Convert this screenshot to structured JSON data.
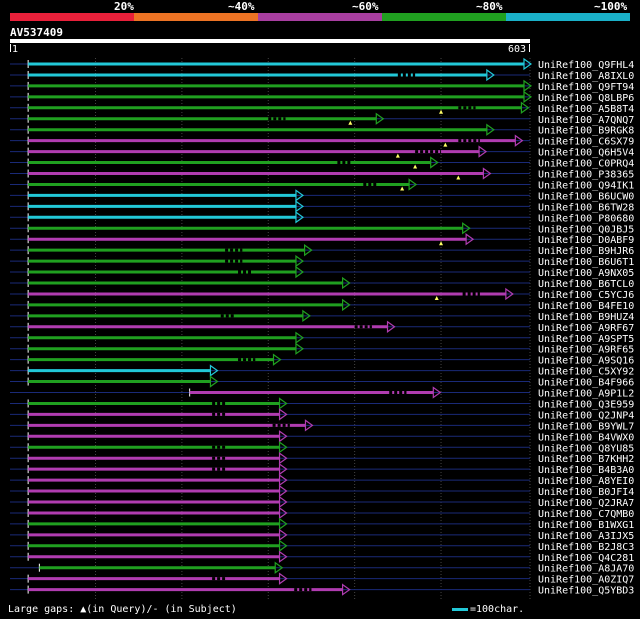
{
  "identity_legend": [
    {
      "label": "20%",
      "color": "#e8203a"
    },
    {
      "label": "~40%",
      "color": "#ec7324"
    },
    {
      "label": "~60%",
      "color": "#a83ea0"
    },
    {
      "label": "~80%",
      "color": "#20a020"
    },
    {
      "label": "~100%",
      "color": "#1ab0c8"
    }
  ],
  "query": {
    "id": "AV537409",
    "start_label": "1",
    "end_label": "603",
    "length": 603
  },
  "colors": {
    "background": "#000000",
    "cyan": "#22c8d8",
    "green": "#20a020",
    "magenta": "#b03cb0",
    "row_line": "#1a2a78",
    "grid": "#444444"
  },
  "hits": [
    {
      "label": "UniRef100_Q9FHL4",
      "start": 22,
      "end": 603,
      "color": "cyan",
      "gaps": []
    },
    {
      "label": "UniRef100_A8IXL0",
      "start": 22,
      "end": 560,
      "color": "cyan",
      "gaps": [
        [
          450,
          470
        ]
      ]
    },
    {
      "label": "UniRef100_Q9FT94",
      "start": 22,
      "end": 603,
      "color": "green",
      "gaps": []
    },
    {
      "label": "UniRef100_Q8LBP6",
      "start": 22,
      "end": 603,
      "color": "green",
      "gaps": []
    },
    {
      "label": "UniRef100_A5B8T4",
      "start": 22,
      "end": 600,
      "color": "green",
      "gaps": [
        [
          520,
          540
        ]
      ],
      "marks": [
        500
      ]
    },
    {
      "label": "UniRef100_A7QNQ7",
      "start": 22,
      "end": 432,
      "color": "green",
      "gaps": [
        [
          300,
          320
        ]
      ],
      "marks": [
        395
      ]
    },
    {
      "label": "UniRef100_B9RGK8",
      "start": 22,
      "end": 560,
      "color": "green",
      "gaps": []
    },
    {
      "label": "UniRef100_C6SX79",
      "start": 22,
      "end": 593,
      "color": "magenta",
      "gaps": [
        [
          520,
          545
        ]
      ],
      "marks": [
        505
      ]
    },
    {
      "label": "UniRef100_Q6H5V4",
      "start": 22,
      "end": 551,
      "color": "magenta",
      "gaps": [
        [
          470,
          500
        ]
      ],
      "marks": [
        450
      ]
    },
    {
      "label": "UniRef100_C0PRQ4",
      "start": 22,
      "end": 495,
      "color": "green",
      "gaps": [
        [
          380,
          395
        ]
      ],
      "marks": [
        470
      ]
    },
    {
      "label": "UniRef100_P38365",
      "start": 22,
      "end": 556,
      "color": "magenta",
      "gaps": [],
      "marks": [
        520
      ]
    },
    {
      "label": "UniRef100_Q94IK1",
      "start": 22,
      "end": 470,
      "color": "green",
      "gaps": [
        [
          410,
          425
        ]
      ],
      "marks": [
        455
      ]
    },
    {
      "label": "UniRef100_B6UCW0",
      "start": 22,
      "end": 339,
      "color": "cyan",
      "gaps": []
    },
    {
      "label": "UniRef100_B6TW28",
      "start": 22,
      "end": 339,
      "color": "cyan",
      "gaps": []
    },
    {
      "label": "UniRef100_P80680",
      "start": 22,
      "end": 339,
      "color": "cyan",
      "gaps": []
    },
    {
      "label": "UniRef100_Q0JBJ5",
      "start": 22,
      "end": 532,
      "color": "green",
      "gaps": []
    },
    {
      "label": "UniRef100_D0ABF9",
      "start": 22,
      "end": 536,
      "color": "magenta",
      "gaps": [],
      "marks": [
        500
      ]
    },
    {
      "label": "UniRef100_B9HJR6",
      "start": 22,
      "end": 349,
      "color": "green",
      "gaps": [
        [
          250,
          270
        ]
      ]
    },
    {
      "label": "UniRef100_B6U6T1",
      "start": 22,
      "end": 339,
      "color": "green",
      "gaps": [
        [
          250,
          270
        ]
      ]
    },
    {
      "label": "UniRef100_A9NX05",
      "start": 22,
      "end": 339,
      "color": "green",
      "gaps": [
        [
          265,
          280
        ]
      ]
    },
    {
      "label": "UniRef100_B6TCL0",
      "start": 22,
      "end": 393,
      "color": "green",
      "gaps": []
    },
    {
      "label": "UniRef100_C5YCJ6",
      "start": 22,
      "end": 582,
      "color": "magenta",
      "gaps": [
        [
          525,
          545
        ]
      ],
      "marks": [
        495
      ]
    },
    {
      "label": "UniRef100_B4FE10",
      "start": 22,
      "end": 393,
      "color": "green",
      "gaps": []
    },
    {
      "label": "UniRef100_B9HUZ4",
      "start": 22,
      "end": 347,
      "color": "green",
      "gaps": [
        [
          245,
          260
        ]
      ]
    },
    {
      "label": "UniRef100_A9RF67",
      "start": 22,
      "end": 445,
      "color": "magenta",
      "gaps": [
        [
          400,
          420
        ]
      ]
    },
    {
      "label": "UniRef100_A9SPT5",
      "start": 22,
      "end": 339,
      "color": "green",
      "gaps": []
    },
    {
      "label": "UniRef100_A9RF65",
      "start": 22,
      "end": 339,
      "color": "green",
      "gaps": []
    },
    {
      "label": "UniRef100_A9SQ16",
      "start": 22,
      "end": 313,
      "color": "green",
      "gaps": [
        [
          265,
          285
        ]
      ]
    },
    {
      "label": "UniRef100_C5XY92",
      "start": 22,
      "end": 240,
      "color": "cyan",
      "gaps": []
    },
    {
      "label": "UniRef100_B4F966",
      "start": 22,
      "end": 240,
      "color": "green",
      "gaps": []
    },
    {
      "label": "UniRef100_A9P1L2",
      "start": 209,
      "end": 498,
      "color": "magenta",
      "gaps": [
        [
          440,
          460
        ]
      ]
    },
    {
      "label": "UniRef100_Q3E959",
      "start": 22,
      "end": 320,
      "color": "green",
      "gaps": [
        [
          235,
          250
        ]
      ]
    },
    {
      "label": "UniRef100_Q2JNP4",
      "start": 22,
      "end": 320,
      "color": "magenta",
      "gaps": [
        [
          235,
          250
        ]
      ]
    },
    {
      "label": "UniRef100_B9YWL7",
      "start": 22,
      "end": 350,
      "color": "magenta",
      "gaps": [
        [
          305,
          325
        ]
      ]
    },
    {
      "label": "UniRef100_B4VWX0",
      "start": 22,
      "end": 320,
      "color": "magenta",
      "gaps": []
    },
    {
      "label": "UniRef100_Q8YU85",
      "start": 22,
      "end": 320,
      "color": "green",
      "gaps": [
        [
          235,
          250
        ]
      ]
    },
    {
      "label": "UniRef100_B7KHH2",
      "start": 22,
      "end": 320,
      "color": "magenta",
      "gaps": [
        [
          235,
          250
        ]
      ]
    },
    {
      "label": "UniRef100_B4B3A0",
      "start": 22,
      "end": 320,
      "color": "magenta",
      "gaps": [
        [
          235,
          250
        ]
      ]
    },
    {
      "label": "UniRef100_A8YEI0",
      "start": 22,
      "end": 320,
      "color": "magenta",
      "gaps": []
    },
    {
      "label": "UniRef100_B0JFI4",
      "start": 22,
      "end": 320,
      "color": "magenta",
      "gaps": []
    },
    {
      "label": "UniRef100_Q2JRA7",
      "start": 22,
      "end": 320,
      "color": "magenta",
      "gaps": []
    },
    {
      "label": "UniRef100_C7QMB0",
      "start": 22,
      "end": 320,
      "color": "magenta",
      "gaps": []
    },
    {
      "label": "UniRef100_B1WXG1",
      "start": 22,
      "end": 320,
      "color": "green",
      "gaps": []
    },
    {
      "label": "UniRef100_A3IJX5",
      "start": 22,
      "end": 320,
      "color": "magenta",
      "gaps": []
    },
    {
      "label": "UniRef100_B2J8C3",
      "start": 22,
      "end": 320,
      "color": "green",
      "gaps": []
    },
    {
      "label": "UniRef100_Q4C281",
      "start": 22,
      "end": 320,
      "color": "magenta",
      "gaps": []
    },
    {
      "label": "UniRef100_A8JA70",
      "start": 35,
      "end": 315,
      "color": "green",
      "gaps": []
    },
    {
      "label": "UniRef100_A0ZIQ7",
      "start": 22,
      "end": 320,
      "color": "magenta",
      "gaps": [
        [
          235,
          250
        ]
      ]
    },
    {
      "label": "UniRef100_Q5YBD3",
      "start": 22,
      "end": 393,
      "color": "magenta",
      "gaps": [
        [
          330,
          350
        ]
      ]
    }
  ],
  "footer": {
    "gaps_text": "Large gaps: ▲(in Query)/- (in Subject)",
    "scale_text": "=100char."
  }
}
